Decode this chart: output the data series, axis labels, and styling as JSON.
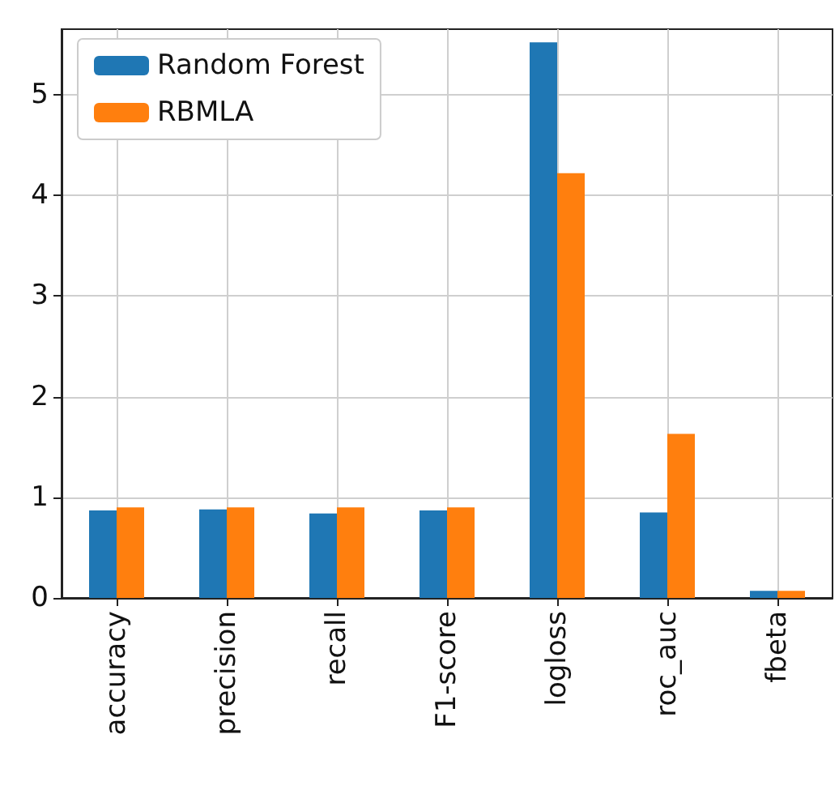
{
  "chart_data": {
    "type": "bar",
    "categories": [
      "accuracy",
      "precision",
      "recall",
      "F1-score",
      "logloss",
      "roc_auc",
      "fbeta"
    ],
    "series": [
      {
        "name": "Random Forest",
        "color": "#1f77b4",
        "values": [
          0.87,
          0.88,
          0.84,
          0.87,
          5.52,
          0.85,
          0.07
        ]
      },
      {
        "name": "RBMLA",
        "color": "#ff7f0e",
        "values": [
          0.9,
          0.9,
          0.9,
          0.9,
          4.22,
          1.63,
          0.07
        ]
      }
    ],
    "ylim": [
      0,
      5.65
    ],
    "yticks": [
      0,
      1,
      2,
      3,
      4,
      5
    ],
    "grid": true,
    "legend": "top left"
  }
}
